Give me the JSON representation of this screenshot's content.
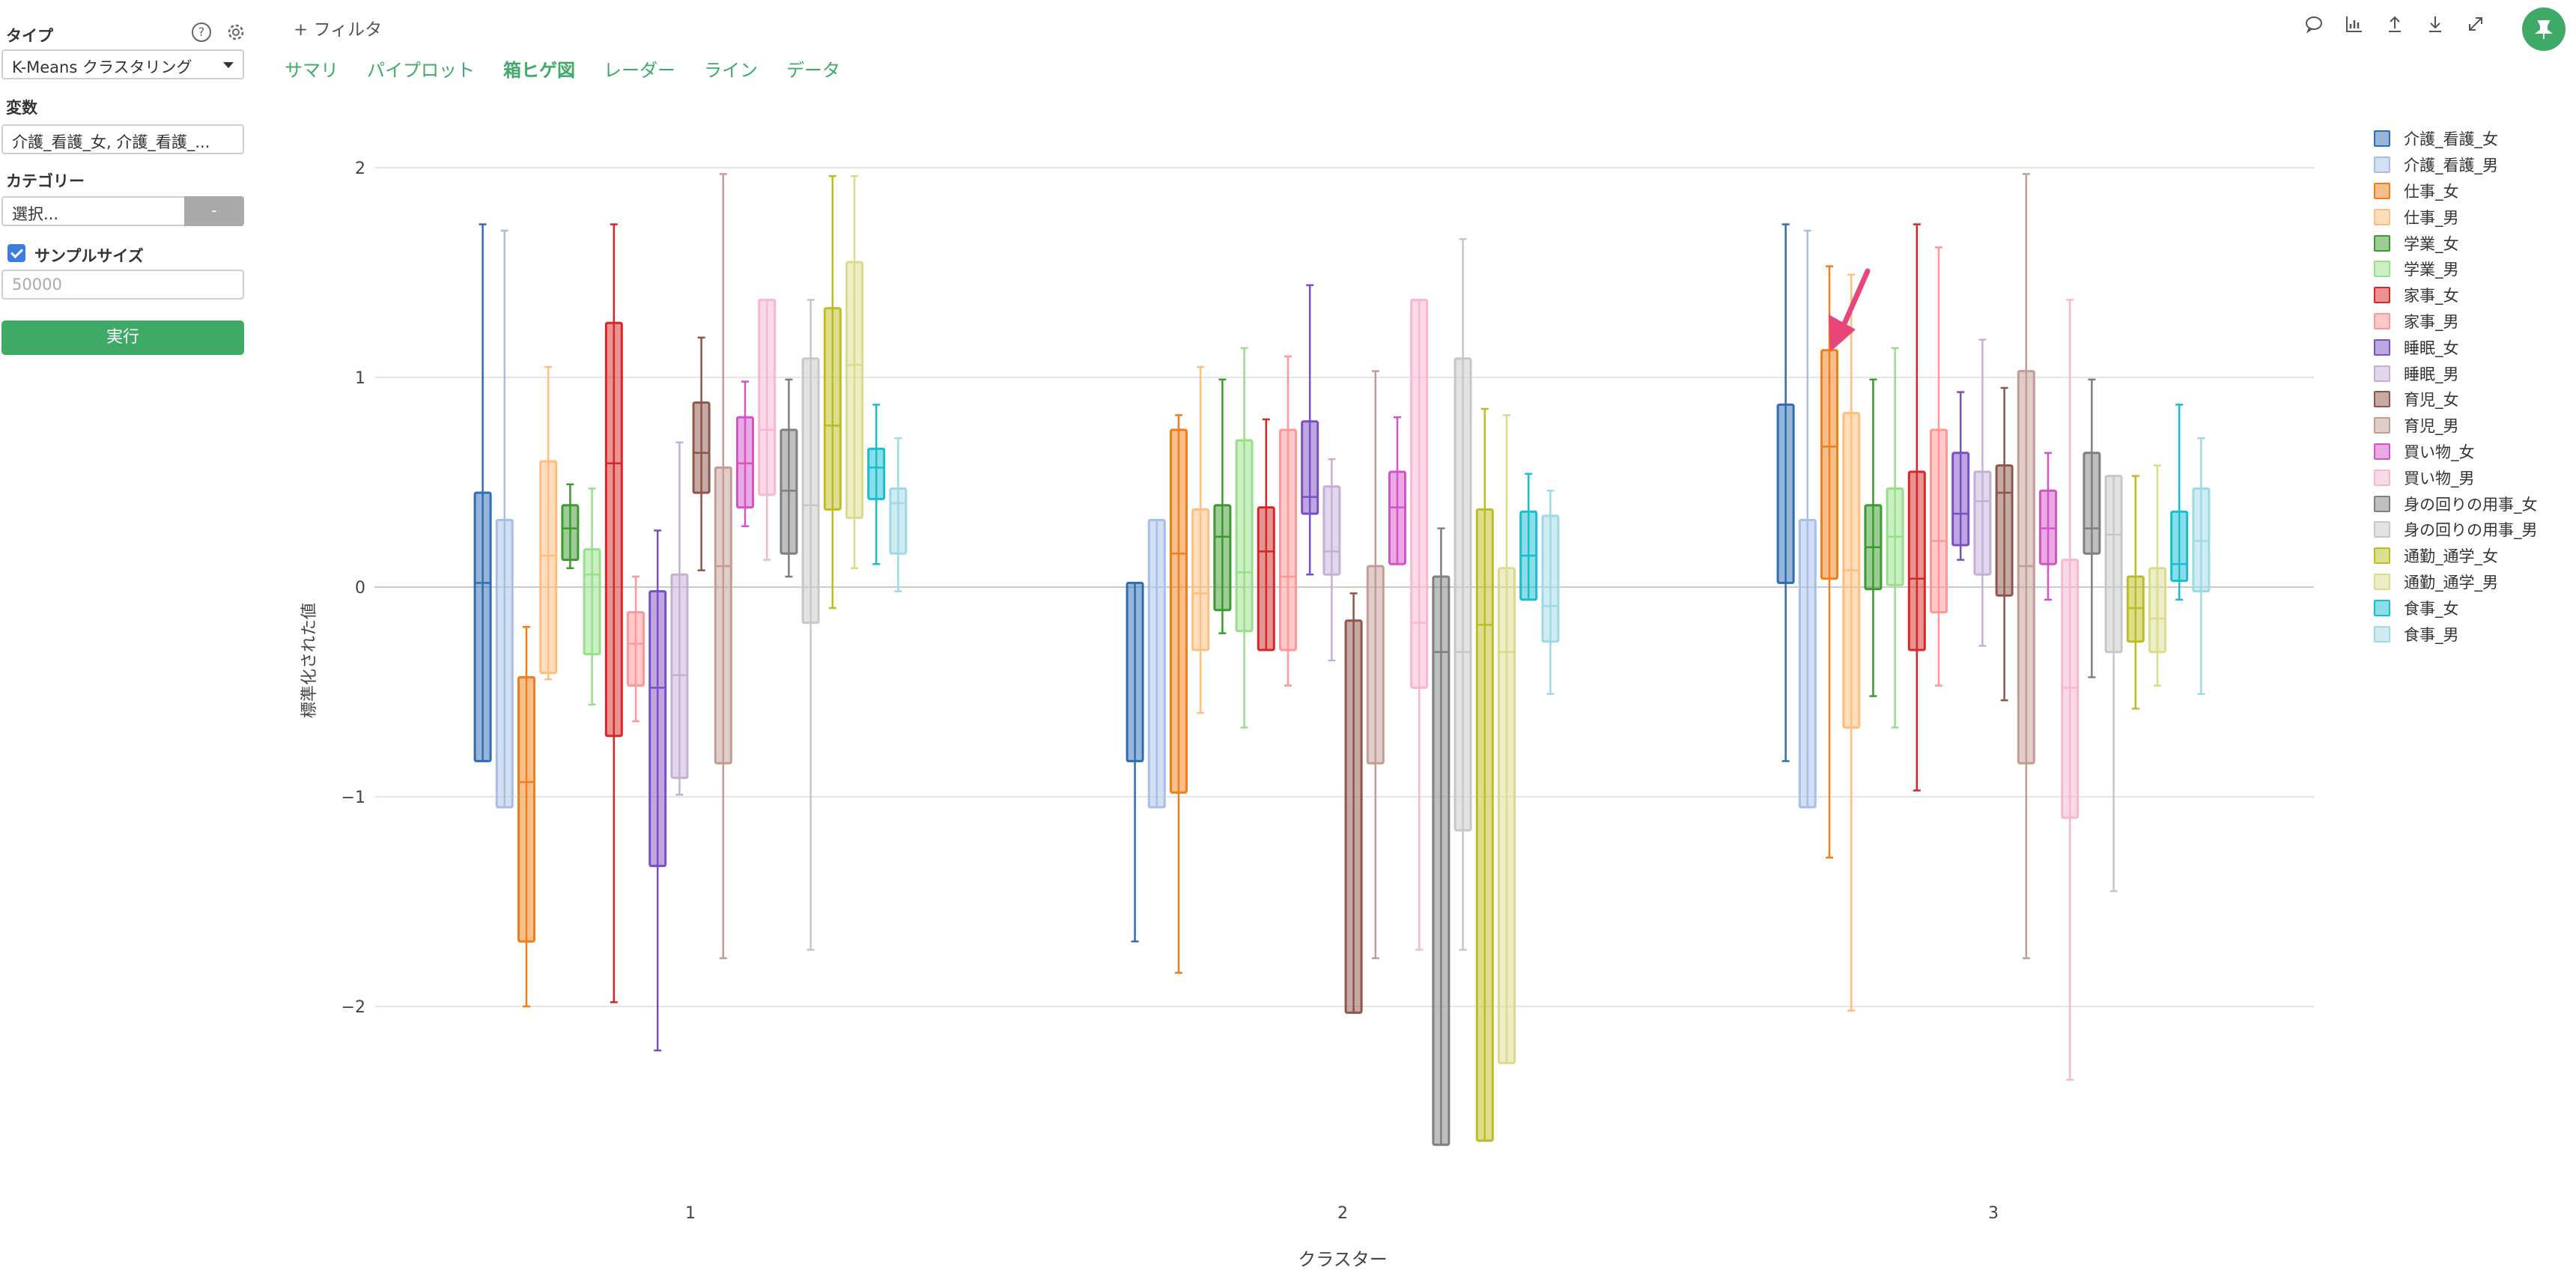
{
  "sidebar": {
    "type_label": "タイプ",
    "type_value": "K-Means クラスタリング",
    "variables_label": "変数",
    "variables_value": "介護_看護_女, 介護_看護_...",
    "category_label": "カテゴリー",
    "category_placeholder": "選択...",
    "category_button": "-",
    "sample_size_label": "サンプルサイズ",
    "sample_size_placeholder": "50000",
    "run_button": "実行",
    "help_icon": "?",
    "settings_icon": "gear-icon"
  },
  "toolbar": {
    "filter_label": "+ フィルタ",
    "tabs": [
      {
        "label": "サマリ",
        "active": false
      },
      {
        "label": "パイプロット",
        "active": false
      },
      {
        "label": "箱ヒゲ図",
        "active": true
      },
      {
        "label": "レーダー",
        "active": false
      },
      {
        "label": "ライン",
        "active": false
      },
      {
        "label": "データ",
        "active": false
      }
    ],
    "icons": [
      "comment-icon",
      "chart-icon",
      "upload-icon",
      "download-icon",
      "expand-icon"
    ],
    "pin_icon": "pin-icon"
  },
  "colors": {
    "accent": "#3faa68",
    "arrow": "#e8457a"
  },
  "chart_data": {
    "type": "box",
    "xlabel": "クラスター",
    "ylabel": "標準化された値",
    "categories": [
      "1",
      "2",
      "3"
    ],
    "ylim": [
      -2.7,
      2.2
    ],
    "yticks": [
      "2",
      "1",
      "0",
      "−1",
      "−2"
    ],
    "ytick_values": [
      2,
      1,
      0,
      -1,
      -2
    ],
    "grid": true,
    "legend_position": "right",
    "series": [
      {
        "name": "介護_看護_女",
        "color": "#2e6db4",
        "boxes": [
          [
            -0.83,
            -0.83,
            0.02,
            0.45,
            1.73
          ],
          [
            -1.69,
            -0.83,
            -0.83,
            0.02,
            0.02
          ],
          [
            -0.83,
            0.02,
            0.02,
            0.87,
            1.73
          ]
        ]
      },
      {
        "name": "介護_看護_男",
        "color": "#a7bfe8",
        "boxes": [
          [
            -1.05,
            -1.05,
            -1.05,
            0.32,
            1.7
          ],
          [
            -1.05,
            -1.05,
            -1.05,
            0.32,
            0.32
          ],
          [
            -1.05,
            -1.05,
            -1.05,
            0.32,
            1.7
          ]
        ]
      },
      {
        "name": "仕事_女",
        "color": "#f07f1a",
        "boxes": [
          [
            -2.0,
            -1.69,
            -0.93,
            -0.43,
            -0.19
          ],
          [
            -1.84,
            -0.98,
            0.16,
            0.75,
            0.82
          ],
          [
            -1.29,
            0.04,
            0.67,
            1.13,
            1.53
          ]
        ]
      },
      {
        "name": "仕事_男",
        "color": "#ffbe7d",
        "boxes": [
          [
            -0.44,
            -0.41,
            0.15,
            0.6,
            1.05
          ],
          [
            -0.6,
            -0.3,
            -0.03,
            0.37,
            1.05
          ],
          [
            -2.02,
            -0.67,
            0.08,
            0.83,
            1.49
          ]
        ]
      },
      {
        "name": "学業_女",
        "color": "#3c9a2e",
        "boxes": [
          [
            0.09,
            0.13,
            0.28,
            0.39,
            0.49
          ],
          [
            -0.22,
            -0.11,
            0.24,
            0.39,
            0.99
          ],
          [
            -0.52,
            -0.01,
            0.19,
            0.39,
            0.99
          ]
        ]
      },
      {
        "name": "学業_男",
        "color": "#98df8a",
        "boxes": [
          [
            -0.56,
            -0.32,
            0.06,
            0.18,
            0.47
          ],
          [
            -0.67,
            -0.21,
            0.07,
            0.7,
            1.14
          ],
          [
            -0.67,
            0.01,
            0.24,
            0.47,
            1.14
          ]
        ]
      },
      {
        "name": "家事_女",
        "color": "#d62728",
        "boxes": [
          [
            -1.98,
            -0.71,
            0.59,
            1.26,
            1.73
          ],
          [
            -0.3,
            -0.3,
            0.17,
            0.38,
            0.8
          ],
          [
            -0.97,
            -0.3,
            0.04,
            0.55,
            1.73
          ]
        ]
      },
      {
        "name": "家事_男",
        "color": "#ff9896",
        "boxes": [
          [
            -0.64,
            -0.47,
            -0.27,
            -0.12,
            0.05
          ],
          [
            -0.47,
            -0.3,
            0.05,
            0.75,
            1.1
          ],
          [
            -0.47,
            -0.12,
            0.22,
            0.75,
            1.62
          ]
        ]
      },
      {
        "name": "睡眠_女",
        "color": "#7b4fc4",
        "boxes": [
          [
            -2.21,
            -1.33,
            -0.48,
            -0.02,
            0.27
          ],
          [
            0.06,
            0.35,
            0.43,
            0.79,
            1.44
          ],
          [
            0.13,
            0.2,
            0.35,
            0.64,
            0.93
          ]
        ]
      },
      {
        "name": "睡眠_男",
        "color": "#c5b0d5",
        "boxes": [
          [
            -0.99,
            -0.91,
            -0.42,
            0.06,
            0.69
          ],
          [
            -0.35,
            0.06,
            0.17,
            0.48,
            0.61
          ],
          [
            -0.28,
            0.06,
            0.41,
            0.55,
            1.18
          ]
        ]
      },
      {
        "name": "育児_女",
        "color": "#8c564b",
        "boxes": [
          [
            0.08,
            0.45,
            0.64,
            0.88,
            1.19
          ],
          [
            -2.03,
            -2.03,
            -0.16,
            -0.16,
            -0.03
          ],
          [
            -0.54,
            -0.04,
            0.45,
            0.58,
            0.95
          ]
        ]
      },
      {
        "name": "育児_男",
        "color": "#c49c94",
        "boxes": [
          [
            -1.77,
            -0.84,
            0.1,
            0.57,
            1.97
          ],
          [
            -1.77,
            -0.84,
            -0.84,
            0.1,
            1.03
          ],
          [
            -1.77,
            -0.84,
            0.1,
            1.03,
            1.97
          ]
        ]
      },
      {
        "name": "買い物_女",
        "color": "#d454c8",
        "boxes": [
          [
            0.29,
            0.38,
            0.59,
            0.81,
            0.98
          ],
          [
            0.11,
            0.11,
            0.38,
            0.55,
            0.81
          ],
          [
            -0.06,
            0.11,
            0.28,
            0.46,
            0.64
          ]
        ]
      },
      {
        "name": "買い物_男",
        "color": "#f7b6d2",
        "boxes": [
          [
            0.13,
            0.44,
            0.75,
            1.37,
            1.37
          ],
          [
            -1.73,
            -0.48,
            -0.17,
            1.37,
            1.37
          ],
          [
            -2.35,
            -1.1,
            -0.48,
            0.13,
            1.37
          ]
        ]
      },
      {
        "name": "身の回りの用事_女",
        "color": "#7f7f7f",
        "boxes": [
          [
            0.05,
            0.16,
            0.46,
            0.75,
            0.99
          ],
          [
            -2.66,
            -2.66,
            -0.31,
            0.05,
            0.28
          ],
          [
            -0.43,
            0.16,
            0.28,
            0.64,
            0.99
          ]
        ]
      },
      {
        "name": "身の回りの用事_男",
        "color": "#c7c7c7",
        "boxes": [
          [
            -1.73,
            -0.17,
            0.39,
            1.09,
            1.37
          ],
          [
            -1.73,
            -1.16,
            -0.31,
            1.09,
            1.66
          ],
          [
            -1.45,
            -0.31,
            0.25,
            0.53,
            0.53
          ]
        ]
      },
      {
        "name": "通勤_通学_女",
        "color": "#bcbd22",
        "boxes": [
          [
            -0.1,
            0.37,
            0.77,
            1.33,
            1.96
          ],
          [
            -2.64,
            -2.64,
            -0.18,
            0.37,
            0.85
          ],
          [
            -0.58,
            -0.26,
            -0.1,
            0.05,
            0.53
          ]
        ]
      },
      {
        "name": "通勤_通学_男",
        "color": "#dbdb8d",
        "boxes": [
          [
            0.09,
            0.33,
            1.06,
            1.55,
            1.96
          ],
          [
            -2.27,
            -2.27,
            -0.31,
            0.09,
            0.82
          ],
          [
            -0.47,
            -0.31,
            -0.15,
            0.09,
            0.58
          ]
        ]
      },
      {
        "name": "食事_女",
        "color": "#17becf",
        "boxes": [
          [
            0.11,
            0.42,
            0.57,
            0.66,
            0.87
          ],
          [
            -0.06,
            -0.06,
            0.15,
            0.36,
            0.54
          ],
          [
            -0.06,
            0.03,
            0.11,
            0.36,
            0.87
          ]
        ]
      },
      {
        "name": "食事_男",
        "color": "#9edae5",
        "boxes": [
          [
            -0.02,
            0.16,
            0.4,
            0.47,
            0.71
          ],
          [
            -0.51,
            -0.26,
            -0.09,
            0.34,
            0.46
          ],
          [
            -0.51,
            -0.02,
            0.22,
            0.47,
            0.71
          ]
        ]
      }
    ]
  }
}
